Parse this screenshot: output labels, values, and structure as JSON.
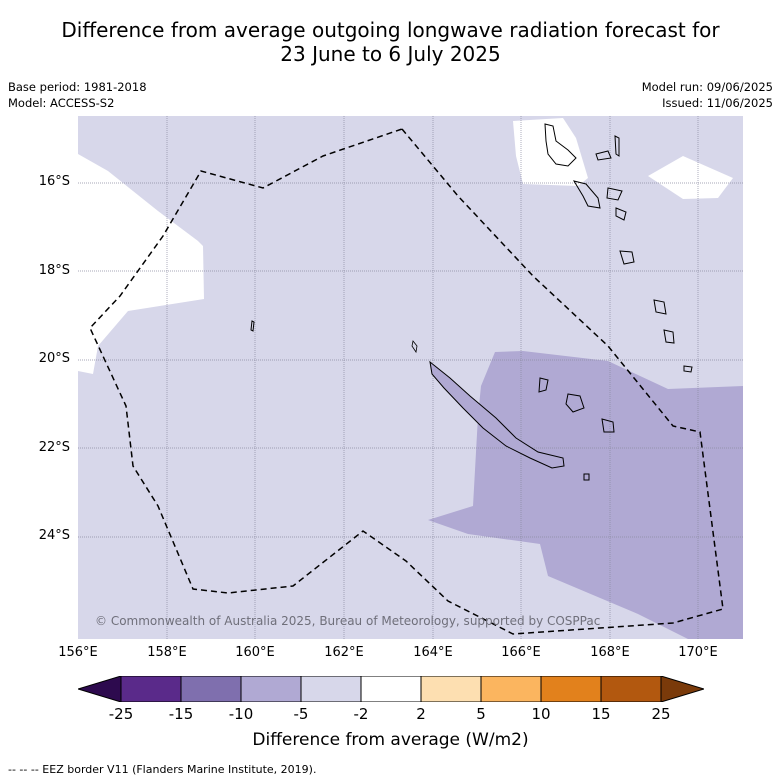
{
  "title_line1": "Difference from average outgoing longwave radiation forecast for",
  "title_line2": "23 June to 6 July 2025",
  "left_meta": [
    "Base period: 1981-2018",
    "Model: ACCESS-S2"
  ],
  "right_meta": [
    "Model run: 09/06/2025",
    "Issued: 11/06/2025"
  ],
  "lat_labels": [
    "16°S",
    "18°S",
    "20°S",
    "22°S",
    "24°S"
  ],
  "lon_labels": [
    "156°E",
    "158°E",
    "160°E",
    "162°E",
    "164°E",
    "166°E",
    "168°E",
    "170°E"
  ],
  "copyright": "© Commonwealth of Australia 2025, Bureau of Meteorology, supported by COSPPac",
  "colorbar": {
    "label": "Difference from average (W/m2)",
    "ticks": [
      "-25",
      "-15",
      "-10",
      "-5",
      "-2",
      "2",
      "5",
      "10",
      "15",
      "25"
    ],
    "colors": [
      "#2d0a4e",
      "#5a2a8a",
      "#7f6fae",
      "#b0a9d3",
      "#d7d7ea",
      "#ffffff",
      "#fddfb1",
      "#fbb55f",
      "#e2811c",
      "#b2580f",
      "#7a3a0a"
    ]
  },
  "footnote": "--  --  -- EEZ border V11 (Flanders Marine Institute, 2019).",
  "colors": {
    "light_purple": "#d7d7ea",
    "mid_purple": "#b0a9d3",
    "white": "#ffffff"
  }
}
